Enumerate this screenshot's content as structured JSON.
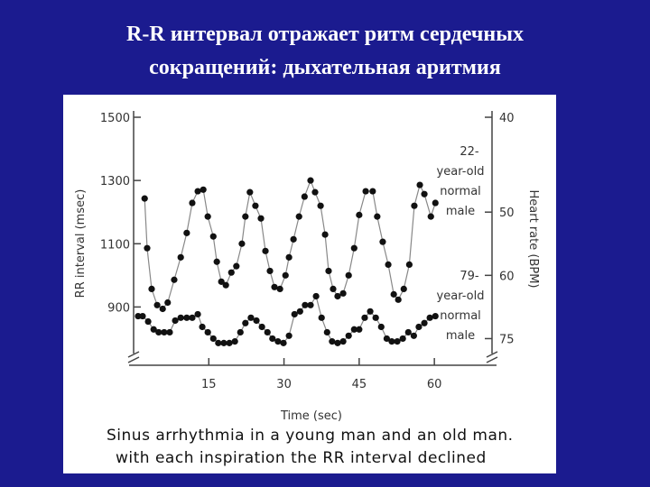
{
  "title_lines": [
    "R-R интервал отражает ритм сердечных",
    "сокращений: дыхательная аритмия"
  ],
  "chart_data": {
    "type": "line",
    "xlabel": "Time (sec)",
    "ylabel": "RR interval (msec)",
    "y2label": "Heart rate (BPM)",
    "xlim": [
      0,
      71.5
    ],
    "xticks": [
      15,
      30,
      45,
      60
    ],
    "ylim": [
      730,
      1520
    ],
    "yticks": [
      900,
      1100,
      1300,
      1500
    ],
    "y2ticks": [
      40,
      50,
      60,
      75
    ],
    "y2scale": "reciprocal",
    "series": [
      {
        "color": "#888888",
        "x": [
          2.2,
          2.7,
          3.6,
          4.7,
          5.8,
          6.8,
          8.1,
          9.4,
          10.6,
          11.7,
          12.8,
          13.9,
          14.8,
          15.9,
          16.6,
          17.5,
          18.4,
          19.5,
          20.5,
          21.6,
          22.3,
          23.2,
          24.3,
          25.4,
          26.3,
          27.2,
          28.1,
          29.2,
          30.3,
          31,
          31.9,
          33,
          34.1,
          35.3,
          36.2,
          37.3,
          38.2,
          38.9,
          39.8,
          40.7,
          41.8,
          42.9,
          44,
          45,
          46.3,
          47.7,
          48.6,
          49.7,
          50.8,
          51.9,
          52.8,
          53.9,
          55,
          56,
          57.1,
          58,
          59.3,
          60.2
        ],
        "values": [
          1243,
          1086,
          957,
          906,
          894,
          914,
          986,
          1057,
          1134,
          1229,
          1266,
          1271,
          1186,
          1123,
          1043,
          980,
          969,
          1009,
          1029,
          1100,
          1186,
          1263,
          1220,
          1180,
          1077,
          1014,
          963,
          957,
          1000,
          1057,
          1114,
          1186,
          1249,
          1300,
          1263,
          1220,
          1129,
          1014,
          957,
          934,
          943,
          1000,
          1086,
          1191,
          1266,
          1266,
          1186,
          1106,
          1034,
          940,
          923,
          957,
          1034,
          1220,
          1286,
          1257,
          1186,
          1229
        ]
      },
      {
        "color": "#888888",
        "x": [
          0.9,
          1.8,
          2.9,
          4,
          5,
          6.1,
          7.2,
          8.3,
          9.4,
          10.6,
          11.7,
          12.8,
          13.7,
          14.8,
          15.9,
          16.9,
          18,
          19.1,
          20.2,
          21.3,
          22.3,
          23.4,
          24.5,
          25.6,
          26.7,
          27.7,
          28.8,
          29.9,
          31,
          32.1,
          33.2,
          34.2,
          35.3,
          36.4,
          37.5,
          38.6,
          39.6,
          40.7,
          41.8,
          42.9,
          44,
          45,
          46.1,
          47.2,
          48.3,
          49.4,
          50.5,
          51.5,
          52.6,
          53.7,
          54.8,
          55.9,
          56.9,
          58,
          59.1,
          60.2
        ],
        "values": [
          871,
          871,
          854,
          829,
          820,
          820,
          820,
          857,
          866,
          866,
          866,
          877,
          837,
          820,
          800,
          786,
          786,
          786,
          791,
          820,
          849,
          866,
          857,
          837,
          820,
          800,
          791,
          786,
          809,
          877,
          886,
          906,
          906,
          934,
          866,
          820,
          791,
          786,
          791,
          809,
          829,
          829,
          866,
          886,
          866,
          837,
          800,
          791,
          791,
          800,
          820,
          809,
          837,
          849,
          866,
          871
        ]
      }
    ],
    "annotations": [
      [
        "22-",
        "year-old",
        "normal",
        "male"
      ],
      [
        "79-",
        "year-old",
        "normal",
        "male"
      ]
    ]
  },
  "caption_lines": [
    "Sinus arrhythmia in a young man and an old man.",
    "with each inspiration the RR interval declined"
  ]
}
